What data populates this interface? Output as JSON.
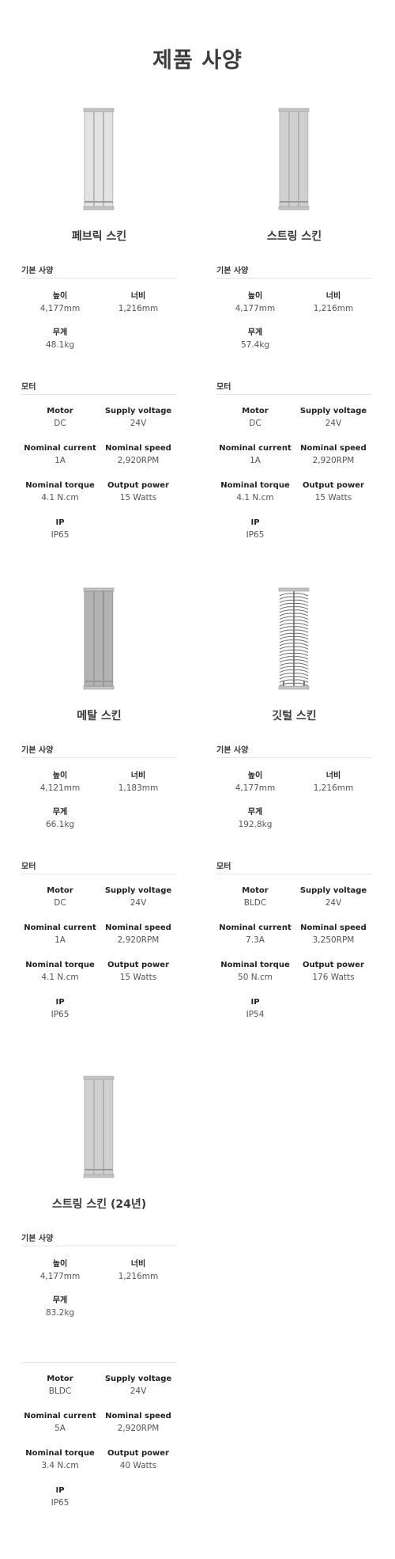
{
  "page": {
    "title": "제품 사양"
  },
  "labels": {
    "basic_spec": "기본 사양",
    "motor_section": "모터",
    "height": "높이",
    "width": "너비",
    "weight": "무게",
    "motor": "Motor",
    "supply_voltage": "Supply voltage",
    "nominal_current": "Nominal current",
    "nominal_speed": "Nominal speed",
    "nominal_torque": "Nominal torque",
    "output_power": "Output power",
    "ip": "IP"
  },
  "colors": {
    "title": "#3c3c3c",
    "divider": "#e4e4e4",
    "panel_light": "#e2e2e2",
    "panel_mid": "#bdbdbd",
    "panel_dark": "#a9a9a9"
  },
  "products": [
    {
      "name": "페브릭 스킨",
      "image_icon": "fabric-panel-icon",
      "height": "4,177mm",
      "width": "1,216mm",
      "weight": "48.1kg",
      "motor_heading": "모터",
      "motor": "DC",
      "supply_voltage": "24V",
      "nominal_current": "1A",
      "nominal_speed": "2,920RPM",
      "nominal_torque": "4.1 N.cm",
      "output_power": "15 Watts",
      "ip": "IP65"
    },
    {
      "name": "스트링 스킨",
      "image_icon": "string-panel-icon",
      "height": "4,177mm",
      "width": "1,216mm",
      "weight": "57.4kg",
      "motor_heading": "모터",
      "motor": "DC",
      "supply_voltage": "24V",
      "nominal_current": "1A",
      "nominal_speed": "2,920RPM",
      "nominal_torque": "4.1 N.cm",
      "output_power": "15 Watts",
      "ip": "IP65"
    },
    {
      "name": "메탈 스킨",
      "image_icon": "metal-panel-icon",
      "height": "4,121mm",
      "width": "1,183mm",
      "weight": "66.1kg",
      "motor_heading": "모터",
      "motor": "DC",
      "supply_voltage": "24V",
      "nominal_current": "1A",
      "nominal_speed": "2,920RPM",
      "nominal_torque": "4.1 N.cm",
      "output_power": "15 Watts",
      "ip": "IP65"
    },
    {
      "name": "깃털 스킨",
      "image_icon": "feather-panel-icon",
      "height": "4,177mm",
      "width": "1,216mm",
      "weight": "192.8kg",
      "motor_heading": "모터",
      "motor": "BLDC",
      "supply_voltage": "24V",
      "nominal_current": "7.3A",
      "nominal_speed": "3,250RPM",
      "nominal_torque": "50 N.cm",
      "output_power": "176 Watts",
      "ip": "IP54"
    },
    {
      "name": "스트링 스킨 (24년)",
      "image_icon": "string-panel-icon",
      "height": "4,177mm",
      "width": "1,216mm",
      "weight": "83.2kg",
      "motor_heading": "",
      "motor": "BLDC",
      "supply_voltage": "24V",
      "nominal_current": "5A",
      "nominal_speed": "2,920RPM",
      "nominal_torque": "3.4 N.cm",
      "output_power": "40 Watts",
      "ip": "IP65"
    }
  ]
}
